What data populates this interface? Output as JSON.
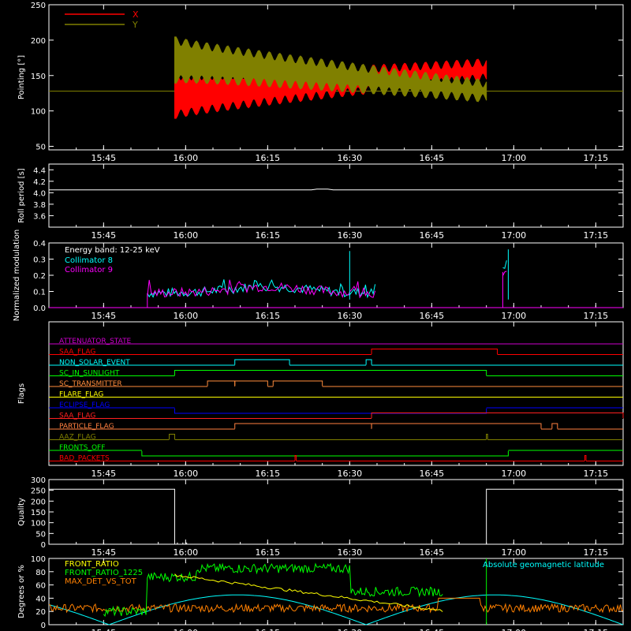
{
  "time_axis": {
    "ticks": [
      "15:45",
      "16:00",
      "16:15",
      "16:30",
      "16:45",
      "17:00",
      "17:15"
    ],
    "range": [
      "15:35",
      "17:20"
    ]
  },
  "chart_data": [
    {
      "type": "line",
      "ylabel": "Pointing [°]",
      "ylim": [
        45,
        250
      ],
      "yticks": [
        50,
        100,
        150,
        200,
        250
      ],
      "series": [
        {
          "name": "X",
          "color": "#ff0000",
          "start": "15:58",
          "end": "16:55",
          "center_start": 122,
          "center_end": 158,
          "amp_start": 55,
          "amp_end": 20
        },
        {
          "name": "Y",
          "color": "#808000",
          "start": "15:58",
          "end": "16:55",
          "center_start": 172,
          "center_end": 128,
          "amp_start": 55,
          "amp_end": 20
        }
      ],
      "baseline": 128,
      "legend": "top-left"
    },
    {
      "type": "line",
      "ylabel": "Roll period [s]",
      "ylim": [
        3.4,
        4.5
      ],
      "yticks": [
        3.6,
        3.8,
        4.0,
        4.2,
        4.4
      ],
      "series": [
        {
          "name": "roll",
          "color": "#ffffff",
          "value": 4.05
        }
      ]
    },
    {
      "type": "line",
      "ylabel": "Normalized modulation",
      "ylim": [
        0,
        0.4
      ],
      "yticks": [
        0.0,
        0.1,
        0.2,
        0.3,
        0.4
      ],
      "annotation": "Energy band: 12-25 keV",
      "series": [
        {
          "name": "Collimator 8",
          "color": "#00ffff"
        },
        {
          "name": "Collimator 9",
          "color": "#ff00ff"
        }
      ],
      "segments": [
        {
          "start": "15:53",
          "end": "16:35",
          "base": 0.09
        },
        {
          "start": "16:58",
          "end": "16:59",
          "base": 0.22
        }
      ],
      "spikes": [
        {
          "time": "16:30",
          "value": 0.35
        },
        {
          "time": "16:59",
          "value": 0.36
        }
      ]
    },
    {
      "type": "table",
      "ylabel": "Flags",
      "flags": [
        {
          "name": "ATTENUATOR_STATE",
          "color": "#cc00cc",
          "base": 0,
          "high": []
        },
        {
          "name": "SAA_FLAG",
          "color": "#ff0000",
          "base": 0,
          "high": [
            [
              "16:34",
              "16:57"
            ]
          ]
        },
        {
          "name": "NON_SOLAR_EVENT",
          "color": "#00ffff",
          "base": 0,
          "high": [
            [
              "16:09",
              "16:19"
            ],
            [
              "16:33",
              "16:34"
            ]
          ]
        },
        {
          "name": "SC_IN_SUNLIGHT",
          "color": "#00ff00",
          "base": 0,
          "high": [
            [
              "15:58",
              "16:55"
            ]
          ]
        },
        {
          "name": "SC_TRANSMITTER",
          "color": "#ff8c3c",
          "base": 0,
          "high": [
            [
              "16:04",
              "16:09"
            ],
            [
              "16:09",
              "16:15"
            ],
            [
              "16:16",
              "16:25"
            ]
          ]
        },
        {
          "name": "FLARE_FLAG",
          "color": "#ffff00",
          "base": 0,
          "high": []
        },
        {
          "name": "ECLIPSE_FLAG",
          "color": "#0000ff",
          "base": 1,
          "high": [
            [
              "15:35",
              "15:58"
            ],
            [
              "16:55",
              "17:20"
            ]
          ]
        },
        {
          "name": "SAA_FLAG",
          "color": "#ff2020",
          "base": 0,
          "high": [
            [
              "16:34",
              "17:20"
            ]
          ]
        },
        {
          "name": "PARTICLE_FLAG",
          "color": "#ff8040",
          "base": 0,
          "high": [
            [
              "16:09",
              "16:34"
            ],
            [
              "16:34",
              "17:05"
            ],
            [
              "17:07",
              "17:08"
            ]
          ]
        },
        {
          "name": "AAZ_FLAG",
          "color": "#808000",
          "base": 0,
          "high": [
            [
              "15:57",
              "15:58"
            ],
            [
              "16:55",
              "16:55"
            ]
          ]
        },
        {
          "name": "FRONTS_OFF",
          "color": "#00ff00",
          "base": 1,
          "high": [
            [
              "15:35",
              "15:52"
            ],
            [
              "16:59",
              "17:20"
            ]
          ]
        },
        {
          "name": "BAD_PACKETS",
          "color": "#ff0000",
          "base": 0,
          "high": [
            [
              "16:20",
              "16:20"
            ],
            [
              "17:13",
              "17:13"
            ]
          ]
        }
      ]
    },
    {
      "type": "line",
      "ylabel": "Quality",
      "ylim": [
        0,
        300
      ],
      "yticks": [
        0,
        50,
        100,
        150,
        200,
        250,
        300
      ],
      "series": [
        {
          "name": "quality",
          "color": "#ffffff",
          "levels": [
            [
              "15:35",
              "15:58",
              255
            ],
            [
              "15:58",
              "16:55",
              0
            ],
            [
              "16:55",
              "17:20",
              255
            ]
          ]
        }
      ]
    },
    {
      "type": "line",
      "ylabel": "Degrees or %",
      "ylim": [
        0,
        100
      ],
      "yticks": [
        0,
        20,
        40,
        60,
        80,
        100
      ],
      "annotation": "Absolute geomagnetic latitude",
      "annotation_color": "#00ffff",
      "series": [
        {
          "name": "FRONT_RATIO",
          "color": "#ffff00"
        },
        {
          "name": "FRONT_RATIO_1225",
          "color": "#00ff00"
        },
        {
          "name": "MAX_DET_VS_TOT",
          "color": "#ff8000"
        }
      ]
    }
  ]
}
